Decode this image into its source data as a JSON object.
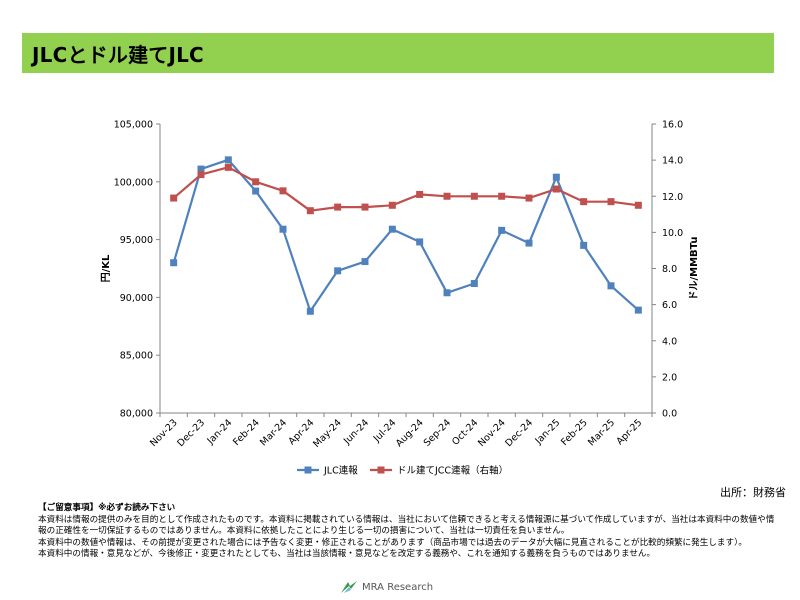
{
  "page": {
    "title": "JLCとドル建てJLC",
    "source": "出所：財務省",
    "notes_title": "【ご留意事項】※必ずお読み下さい",
    "notes": [
      "本資料は情報の提供のみを目的として作成されたものです。本資料に掲載されている情報は、当社において信頼できると考える情報源に基づいて作成していますが、当社は本資料中の数値や情報の正確性を一切保証するものではありません。本資料に依拠したことにより生じる一切の損害について、当社は一切責任を負いません。",
      "本資料中の数値や情報は、その前提が変更された場合には予告なく変更・修正されることがあります（商品市場では過去のデータが大幅に見直されることが比較的頻繁に発生します）。",
      "本資料中の情報・意見などが、今後修正・変更されたとしても、当社は当該情報・意見などを改定する義務や、これを通知する義務を負うものではありません。"
    ],
    "logo_text": "MRA Research"
  },
  "colors": {
    "title_bg": "#92d050",
    "jlc": "#4f81bd",
    "usd": "#c0504d",
    "axis": "#868686"
  },
  "chart_data": {
    "type": "line",
    "categories": [
      "Nov-23",
      "Dec-23",
      "Jan-24",
      "Feb-24",
      "Mar-24",
      "Apr-24",
      "May-24",
      "Jun-24",
      "Jul-24",
      "Aug-24",
      "Sep-24",
      "Oct-24",
      "Nov-24",
      "Dec-24",
      "Jan-25",
      "Feb-25",
      "Mar-25",
      "Apr-25"
    ],
    "ylabel": "円/KL",
    "y2label": "ドル/MMBTu",
    "ylim": [
      80000,
      105000
    ],
    "y_ticks": [
      "80,000",
      "85,000",
      "90,000",
      "95,000",
      "100,000",
      "105,000"
    ],
    "y2lim": [
      0,
      16
    ],
    "y2_ticks": [
      "0.0",
      "2.0",
      "4.0",
      "6.0",
      "8.0",
      "10.0",
      "12.0",
      "14.0",
      "16.0"
    ],
    "legend_position": "bottom",
    "grid": false,
    "series": [
      {
        "name": "JLC連報",
        "axis": "left",
        "marker": "square",
        "values": [
          93000,
          101100,
          101900,
          99200,
          95900,
          88800,
          92300,
          93100,
          95900,
          94800,
          90400,
          91200,
          95800,
          94700,
          100400,
          94500,
          91000,
          88900
        ]
      },
      {
        "name": "ドル建てJCC連報（右軸）",
        "axis": "right",
        "marker": "square",
        "values": [
          11.9,
          13.2,
          13.6,
          12.8,
          12.3,
          11.2,
          11.4,
          11.4,
          11.5,
          12.1,
          12.0,
          12.0,
          12.0,
          11.9,
          12.4,
          11.7,
          11.7,
          11.5
        ]
      }
    ]
  }
}
